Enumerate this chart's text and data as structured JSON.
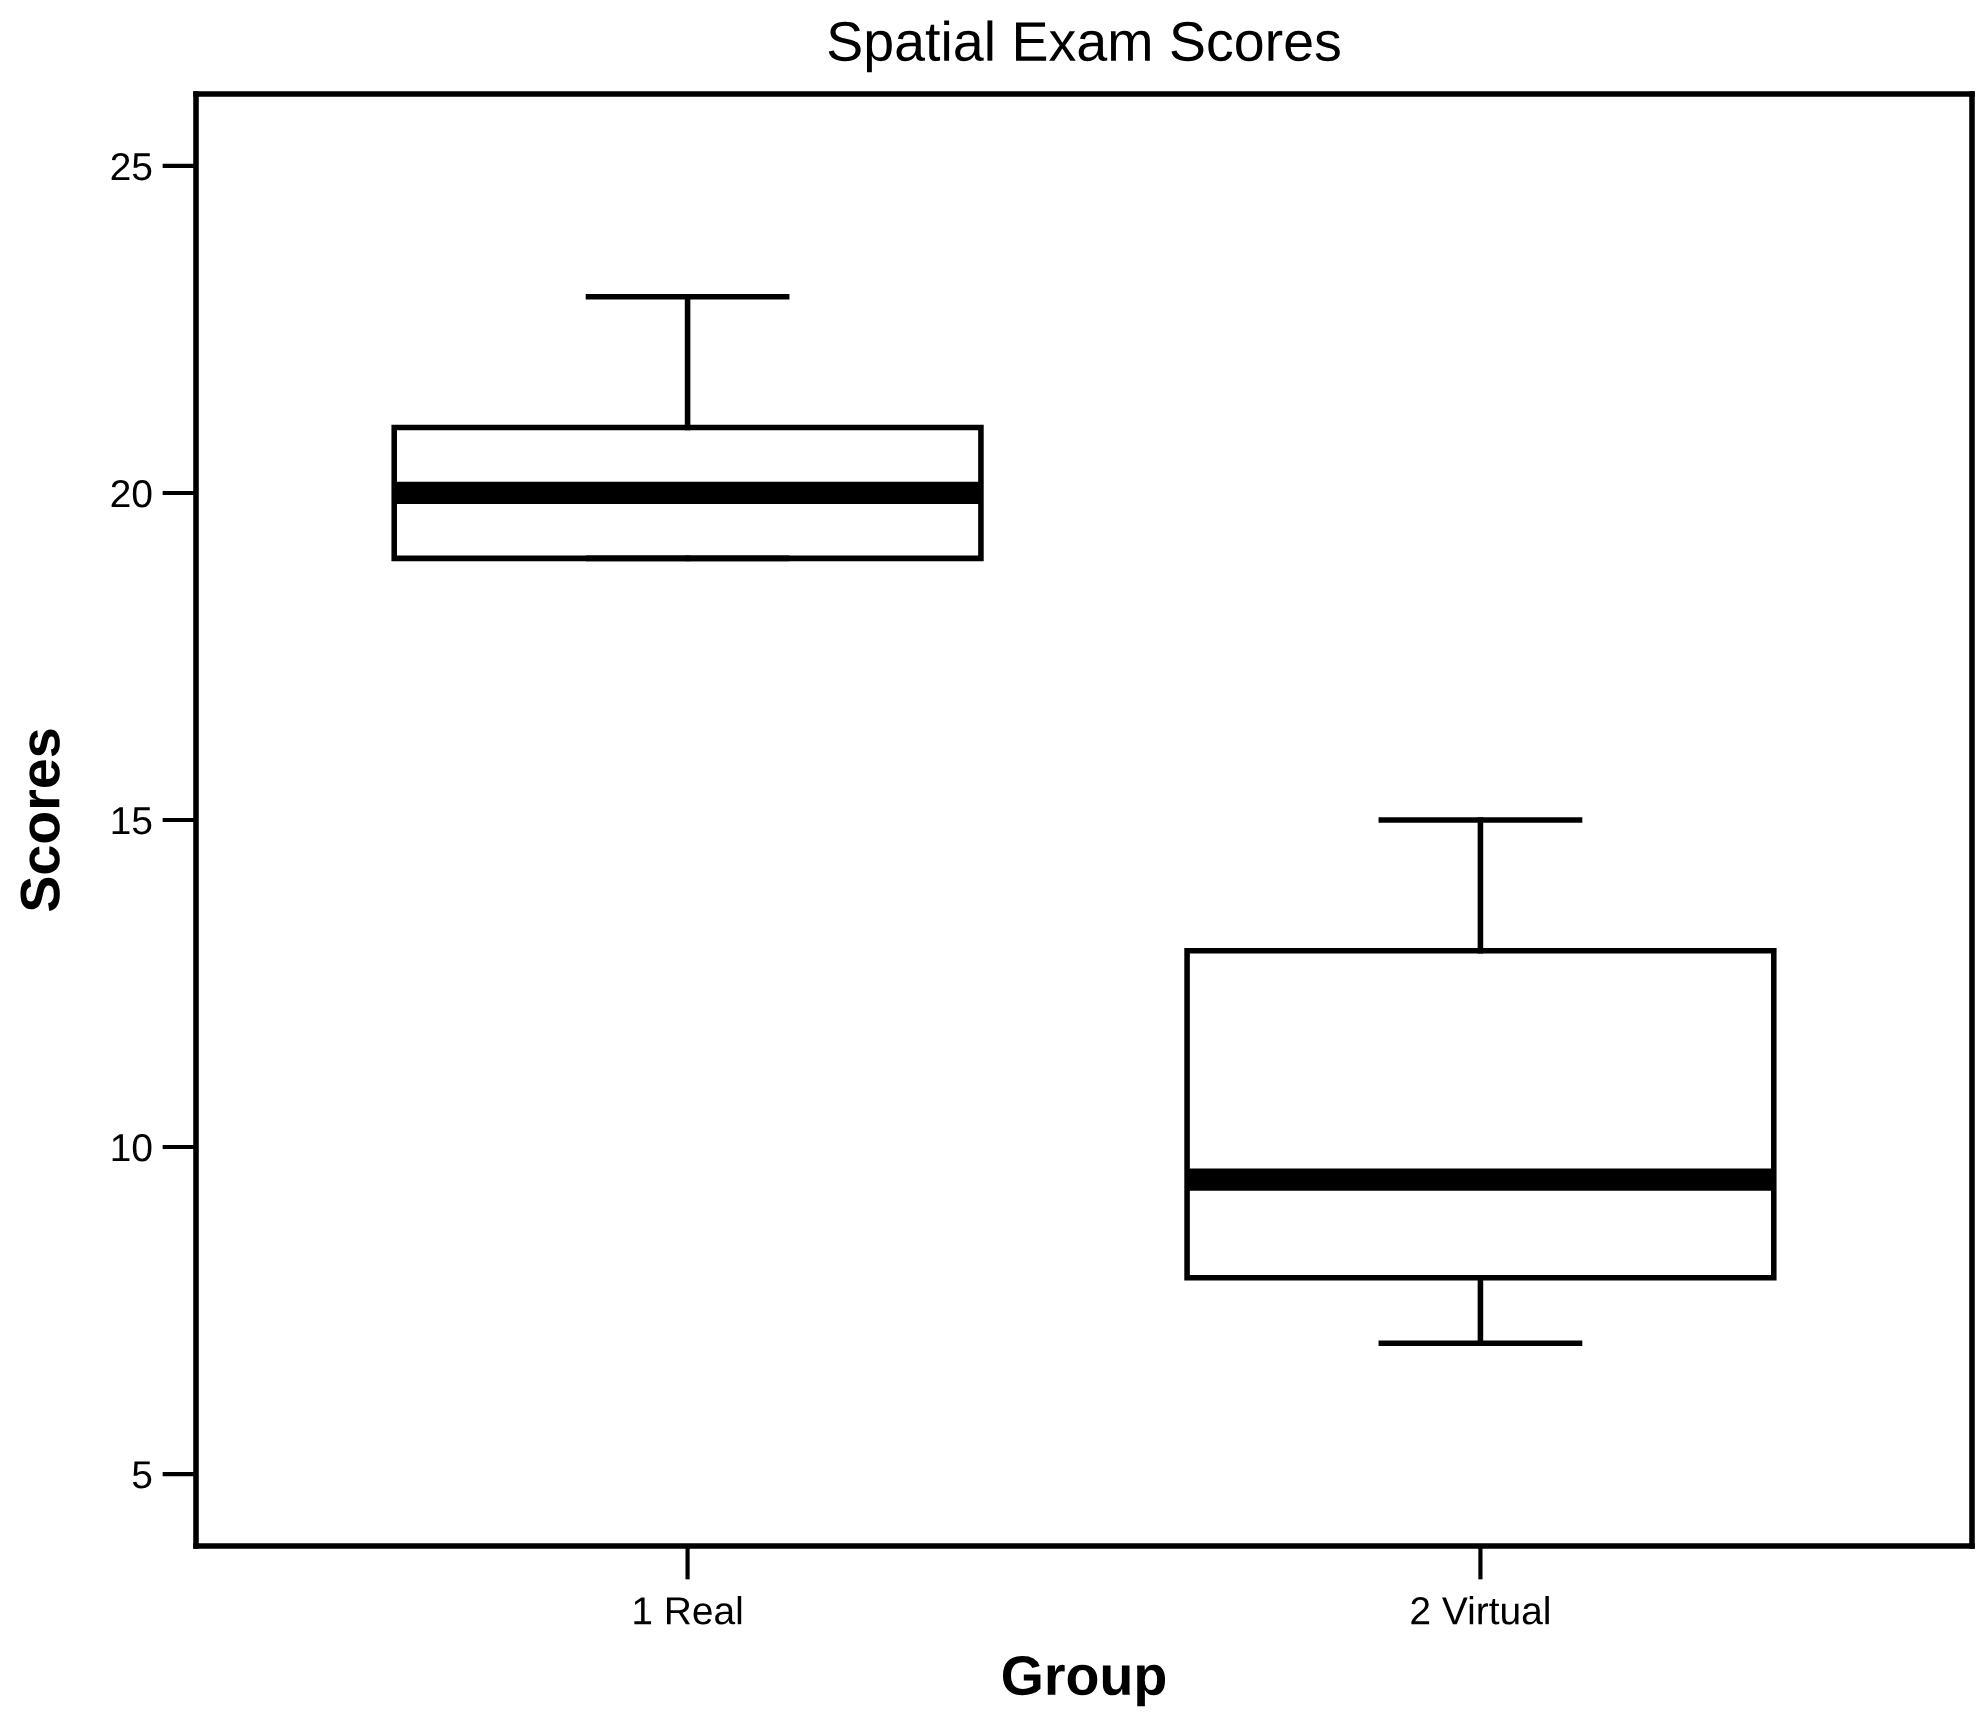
{
  "chart_data": {
    "type": "box",
    "title": "Spatial Exam Scores",
    "xlabel": "Group",
    "ylabel": "Scores",
    "categories": [
      "1 Real",
      "2 Virtual"
    ],
    "boxes": [
      {
        "low": 19,
        "q1": 19,
        "median": 20,
        "q3": 21,
        "high": 23
      },
      {
        "low": 7,
        "q1": 8,
        "median": 9.5,
        "q3": 13,
        "high": 15
      }
    ],
    "ylim": [
      3.9,
      26.1
    ],
    "yticks": [
      5,
      10,
      15,
      20,
      25
    ],
    "grid": false,
    "legend": false
  }
}
